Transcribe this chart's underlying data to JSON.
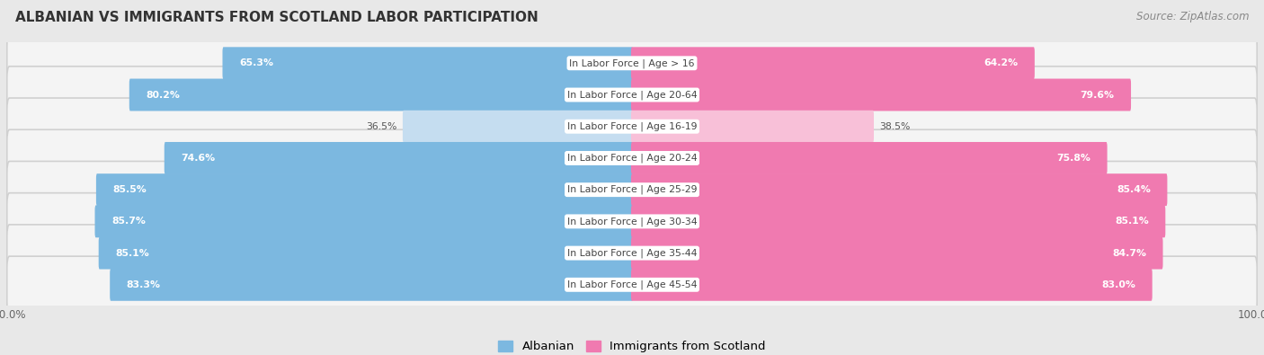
{
  "title": "ALBANIAN VS IMMIGRANTS FROM SCOTLAND LABOR PARTICIPATION",
  "source": "Source: ZipAtlas.com",
  "categories": [
    "In Labor Force | Age > 16",
    "In Labor Force | Age 20-64",
    "In Labor Force | Age 16-19",
    "In Labor Force | Age 20-24",
    "In Labor Force | Age 25-29",
    "In Labor Force | Age 30-34",
    "In Labor Force | Age 35-44",
    "In Labor Force | Age 45-54"
  ],
  "albanian": [
    65.3,
    80.2,
    36.5,
    74.6,
    85.5,
    85.7,
    85.1,
    83.3
  ],
  "scotland": [
    64.2,
    79.6,
    38.5,
    75.8,
    85.4,
    85.1,
    84.7,
    83.0
  ],
  "albanian_color": "#7cb8e0",
  "scotland_color": "#f07ab0",
  "albanian_light": "#c5ddf0",
  "scotland_light": "#f8c0d8",
  "bg_color": "#e8e8e8",
  "row_bg_color": "#f4f4f4",
  "legend_albanian": "Albanian",
  "legend_scotland": "Immigrants from Scotland"
}
